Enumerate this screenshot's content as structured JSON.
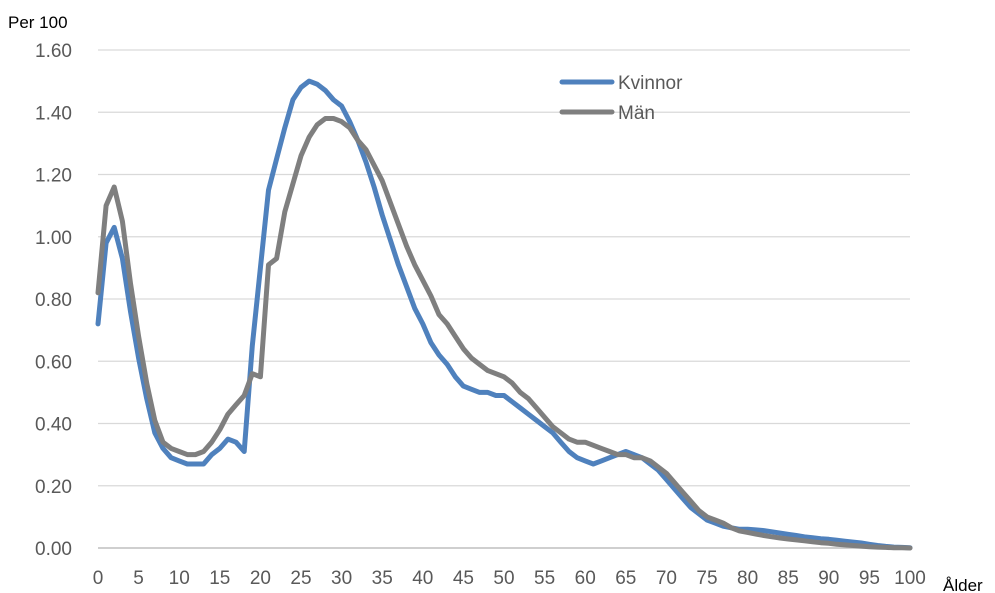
{
  "chart_data": {
    "type": "line",
    "title": "",
    "ylabel": "Per 100",
    "xlabel": "Ålder",
    "xlim": [
      0,
      100
    ],
    "ylim": [
      0,
      1.6
    ],
    "grid": true,
    "legend_position": "top-right",
    "x_ticks": [
      0,
      5,
      10,
      15,
      20,
      25,
      30,
      35,
      40,
      45,
      50,
      55,
      60,
      65,
      70,
      75,
      80,
      85,
      90,
      95,
      100
    ],
    "y_ticks": [
      "0.00",
      "0.20",
      "0.40",
      "0.60",
      "0.80",
      "1.00",
      "1.20",
      "1.40",
      "1.60"
    ],
    "x": [
      0,
      1,
      2,
      3,
      4,
      5,
      6,
      7,
      8,
      9,
      10,
      11,
      12,
      13,
      14,
      15,
      16,
      17,
      18,
      19,
      20,
      21,
      22,
      23,
      24,
      25,
      26,
      27,
      28,
      29,
      30,
      31,
      32,
      33,
      34,
      35,
      36,
      37,
      38,
      39,
      40,
      41,
      42,
      43,
      44,
      45,
      46,
      47,
      48,
      49,
      50,
      51,
      52,
      53,
      54,
      55,
      56,
      57,
      58,
      59,
      60,
      61,
      62,
      63,
      64,
      65,
      66,
      67,
      68,
      69,
      70,
      71,
      72,
      73,
      74,
      75,
      76,
      77,
      78,
      79,
      80,
      81,
      82,
      83,
      84,
      85,
      86,
      87,
      88,
      89,
      90,
      91,
      92,
      93,
      94,
      95,
      96,
      97,
      98,
      99,
      100
    ],
    "series": [
      {
        "name": "Kvinnor",
        "color": "#4f81bd",
        "values": [
          0.72,
          0.98,
          1.03,
          0.93,
          0.76,
          0.61,
          0.48,
          0.37,
          0.32,
          0.29,
          0.28,
          0.27,
          0.27,
          0.27,
          0.3,
          0.32,
          0.35,
          0.34,
          0.31,
          0.65,
          0.9,
          1.15,
          1.25,
          1.35,
          1.44,
          1.48,
          1.5,
          1.49,
          1.47,
          1.44,
          1.42,
          1.37,
          1.31,
          1.24,
          1.16,
          1.07,
          0.99,
          0.91,
          0.84,
          0.77,
          0.72,
          0.66,
          0.62,
          0.59,
          0.55,
          0.52,
          0.51,
          0.5,
          0.5,
          0.49,
          0.49,
          0.47,
          0.45,
          0.43,
          0.41,
          0.39,
          0.37,
          0.34,
          0.31,
          0.29,
          0.28,
          0.27,
          0.28,
          0.29,
          0.3,
          0.31,
          0.3,
          0.29,
          0.27,
          0.25,
          0.22,
          0.19,
          0.16,
          0.13,
          0.11,
          0.09,
          0.08,
          0.07,
          0.065,
          0.06,
          0.06,
          0.058,
          0.056,
          0.052,
          0.048,
          0.044,
          0.04,
          0.036,
          0.033,
          0.03,
          0.028,
          0.025,
          0.022,
          0.019,
          0.016,
          0.012,
          0.008,
          0.005,
          0.003,
          0.002,
          0.001
        ]
      },
      {
        "name": "Män",
        "color": "#7f7f7f",
        "values": [
          0.82,
          1.1,
          1.16,
          1.05,
          0.85,
          0.68,
          0.53,
          0.41,
          0.34,
          0.32,
          0.31,
          0.3,
          0.3,
          0.31,
          0.34,
          0.38,
          0.43,
          0.46,
          0.49,
          0.56,
          0.55,
          0.91,
          0.93,
          1.08,
          1.17,
          1.26,
          1.32,
          1.36,
          1.38,
          1.38,
          1.37,
          1.35,
          1.31,
          1.28,
          1.23,
          1.18,
          1.11,
          1.04,
          0.97,
          0.91,
          0.86,
          0.81,
          0.75,
          0.72,
          0.68,
          0.64,
          0.61,
          0.59,
          0.57,
          0.56,
          0.55,
          0.53,
          0.5,
          0.48,
          0.45,
          0.42,
          0.39,
          0.37,
          0.35,
          0.34,
          0.34,
          0.33,
          0.32,
          0.31,
          0.3,
          0.3,
          0.29,
          0.29,
          0.28,
          0.26,
          0.24,
          0.21,
          0.18,
          0.15,
          0.12,
          0.1,
          0.09,
          0.08,
          0.065,
          0.055,
          0.05,
          0.045,
          0.04,
          0.036,
          0.032,
          0.029,
          0.026,
          0.023,
          0.02,
          0.017,
          0.015,
          0.012,
          0.01,
          0.008,
          0.006,
          0.004,
          0.003,
          0.002,
          0.001,
          0.001,
          0.0
        ]
      }
    ]
  }
}
